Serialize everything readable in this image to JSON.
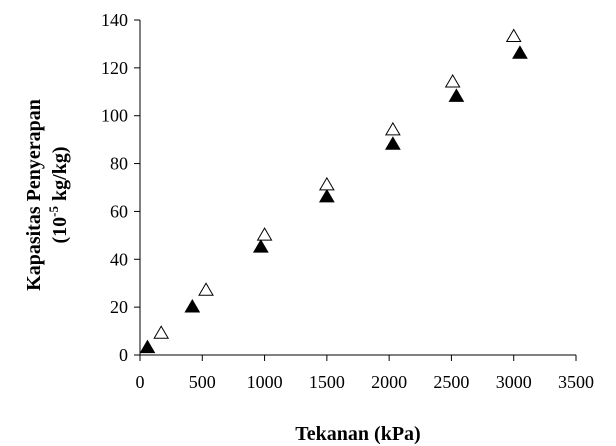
{
  "chart_data": {
    "type": "scatter",
    "title": "",
    "xlabel": "Tekanan (kPa)",
    "ylabel_line1": "Kapasitas Penyerapan",
    "ylabel_line2_prefix": "(10",
    "ylabel_line2_exp": "-5",
    "ylabel_line2_suffix": " kg/kg)",
    "xlim": [
      0,
      3500
    ],
    "ylim": [
      0,
      140
    ],
    "xticks": [
      0,
      500,
      1000,
      1500,
      2000,
      2500,
      3000,
      3500
    ],
    "yticks": [
      0,
      20,
      40,
      60,
      80,
      100,
      120,
      140
    ],
    "grid": false,
    "legend": "none",
    "series": [
      {
        "marker": "triangle-filled",
        "color": "#000000",
        "points": [
          {
            "x": 60,
            "y": 3
          },
          {
            "x": 420,
            "y": 20
          },
          {
            "x": 970,
            "y": 45
          },
          {
            "x": 1500,
            "y": 66
          },
          {
            "x": 2030,
            "y": 88
          },
          {
            "x": 2540,
            "y": 108
          },
          {
            "x": 3050,
            "y": 126
          }
        ]
      },
      {
        "marker": "triangle-open",
        "color": "#000000",
        "points": [
          {
            "x": 170,
            "y": 9
          },
          {
            "x": 530,
            "y": 27
          },
          {
            "x": 1000,
            "y": 50
          },
          {
            "x": 1500,
            "y": 71
          },
          {
            "x": 2030,
            "y": 94
          },
          {
            "x": 2510,
            "y": 114
          },
          {
            "x": 3000,
            "y": 133
          }
        ]
      }
    ]
  }
}
